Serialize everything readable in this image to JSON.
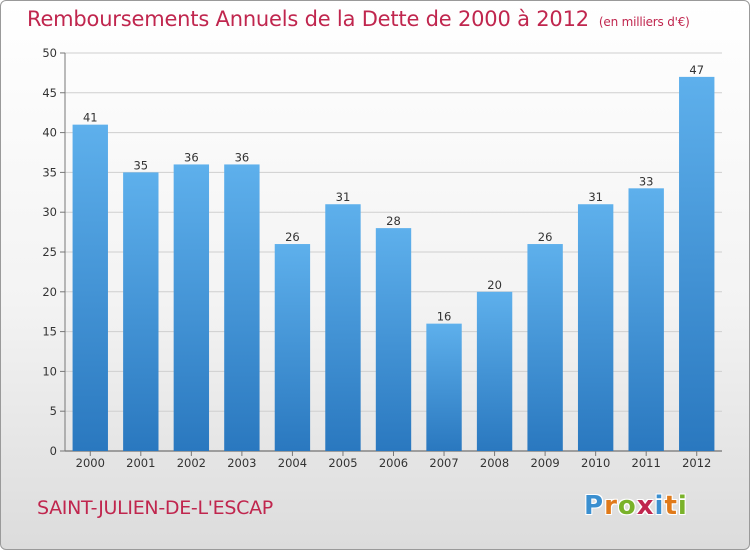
{
  "header": {
    "title": "Remboursements Annuels de la Dette de 2000 à 2012",
    "subtitle": "(en milliers d'€)"
  },
  "commune": "SAINT-JULIEN-DE-L'ESCAP",
  "brand": {
    "letters": [
      "P",
      "r",
      "o",
      "x",
      "i",
      "t",
      "i"
    ],
    "colors": [
      "#3a8fd0",
      "#e07a1a",
      "#7ab22a",
      "#c0264e",
      "#3a8fd0",
      "#e07a1a",
      "#7ab22a"
    ]
  },
  "chart_data": {
    "type": "bar",
    "title": "Remboursements Annuels de la Dette de 2000 à 2012",
    "categories": [
      "2000",
      "2001",
      "2002",
      "2003",
      "2004",
      "2005",
      "2006",
      "2007",
      "2008",
      "2009",
      "2010",
      "2011",
      "2012"
    ],
    "values": [
      41,
      35,
      36,
      36,
      26,
      31,
      28,
      16,
      20,
      26,
      31,
      33,
      47
    ],
    "yticks": [
      "0",
      "5",
      "10",
      "15",
      "20",
      "25",
      "30",
      "35",
      "40",
      "45",
      "50"
    ],
    "ylim": [
      0,
      50
    ],
    "grid": true,
    "bar_color": "#3e8fd6"
  }
}
